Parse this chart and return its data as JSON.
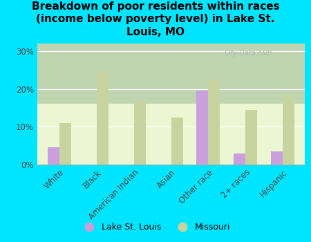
{
  "title": "Breakdown of poor residents within races\n(income below poverty level) in Lake St.\nLouis, MO",
  "categories": [
    "White",
    "Black",
    "American Indian",
    "Asian",
    "Other race",
    "2+ races",
    "Hispanic"
  ],
  "city_values": [
    4.5,
    0,
    0,
    0,
    19.5,
    3.0,
    3.5
  ],
  "state_values": [
    11.0,
    24.5,
    17.0,
    12.5,
    22.5,
    14.5,
    18.5
  ],
  "city_color": "#c9a0dc",
  "state_color": "#c8d4a0",
  "bg_color": "#00e5ff",
  "plot_bg_top": "#e8f5d0",
  "plot_bg_bottom": "#f5fce8",
  "ylim": [
    0,
    32
  ],
  "yticks": [
    0,
    10,
    20,
    30
  ],
  "ytick_labels": [
    "0%",
    "10%",
    "20%",
    "30%"
  ],
  "watermark": "City-Data.com",
  "legend_city": "Lake St. Louis",
  "legend_state": "Missouri",
  "title_fontsize": 11,
  "tick_fontsize": 8.5,
  "bar_width": 0.32
}
